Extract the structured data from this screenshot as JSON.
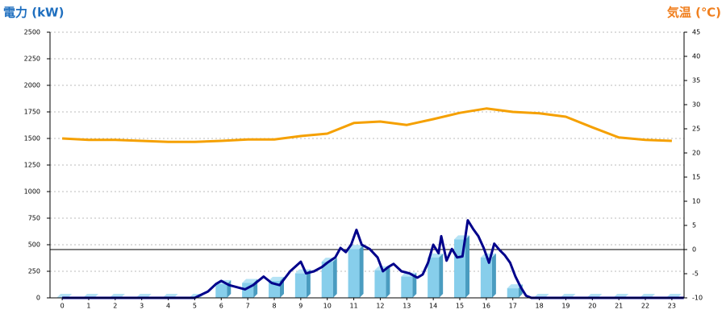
{
  "chart_data": {
    "type": "bar-line",
    "y_title": "電力 (kW)",
    "y2_title": "気温 (℃)",
    "xlim": [
      -0.46,
      23.46
    ],
    "xticks": [
      0,
      1,
      2,
      3,
      4,
      5,
      6,
      7,
      8,
      9,
      10,
      11,
      12,
      13,
      14,
      15,
      16,
      17,
      18,
      19,
      20,
      21,
      22,
      23
    ],
    "ylim": [
      0,
      2500
    ],
    "yticks": [
      0,
      250,
      500,
      750,
      1000,
      1250,
      1500,
      1750,
      2000,
      2250,
      2500
    ],
    "y2lim": [
      -10,
      45
    ],
    "y2ticks": [
      -10,
      -5,
      0,
      5,
      10,
      15,
      20,
      25,
      30,
      35,
      40,
      45
    ],
    "y2_reference_line": 0,
    "grid": true,
    "x": [
      0,
      1,
      2,
      3,
      4,
      5,
      6,
      7,
      8,
      9,
      10,
      11,
      12,
      13,
      14,
      15,
      16,
      17,
      18,
      19,
      20,
      21,
      22,
      23
    ],
    "series": [
      {
        "type": "bar",
        "color": "#87ceeb",
        "values": [
          0,
          0,
          0,
          0,
          0,
          0,
          130,
          140,
          160,
          230,
          340,
          460,
          260,
          200,
          380,
          550,
          380,
          90,
          0,
          0,
          0,
          0,
          0,
          0
        ]
      },
      {
        "type": "line",
        "color": "#00008b",
        "x": [
          0,
          5,
          5.5,
          5.8,
          6,
          6.3,
          6.6,
          6.9,
          7.2,
          7.6,
          7.9,
          8.2,
          8.6,
          9,
          9.2,
          9.5,
          9.8,
          10,
          10.3,
          10.5,
          10.7,
          10.9,
          11.1,
          11.3,
          11.6,
          11.9,
          12.1,
          12.3,
          12.5,
          12.8,
          13.1,
          13.4,
          13.6,
          13.8,
          14,
          14.2,
          14.3,
          14.5,
          14.7,
          14.9,
          15.1,
          15.3,
          15.5,
          15.7,
          15.9,
          16.1,
          16.3,
          16.5,
          16.7,
          16.9,
          17.1,
          17.3,
          17.5,
          17.7,
          23.45
        ],
        "values": [
          0,
          0,
          60,
          130,
          160,
          120,
          100,
          80,
          120,
          200,
          140,
          120,
          250,
          340,
          230,
          250,
          290,
          330,
          380,
          470,
          430,
          500,
          640,
          500,
          460,
          380,
          250,
          290,
          320,
          250,
          230,
          190,
          220,
          330,
          500,
          420,
          580,
          350,
          460,
          380,
          390,
          730,
          650,
          580,
          470,
          330,
          510,
          450,
          400,
          330,
          200,
          100,
          20,
          0,
          0
        ]
      },
      {
        "type": "line",
        "axis": "y2",
        "color": "#f5a000",
        "values": [
          23,
          22.7,
          22.7,
          22.5,
          22.3,
          22.3,
          22.5,
          22.8,
          22.8,
          23.5,
          24,
          26.2,
          26.5,
          25.8,
          27,
          28.3,
          29.2,
          28.5,
          28.2,
          27.5,
          25.3,
          23.2,
          22.7,
          22.5
        ]
      }
    ]
  }
}
